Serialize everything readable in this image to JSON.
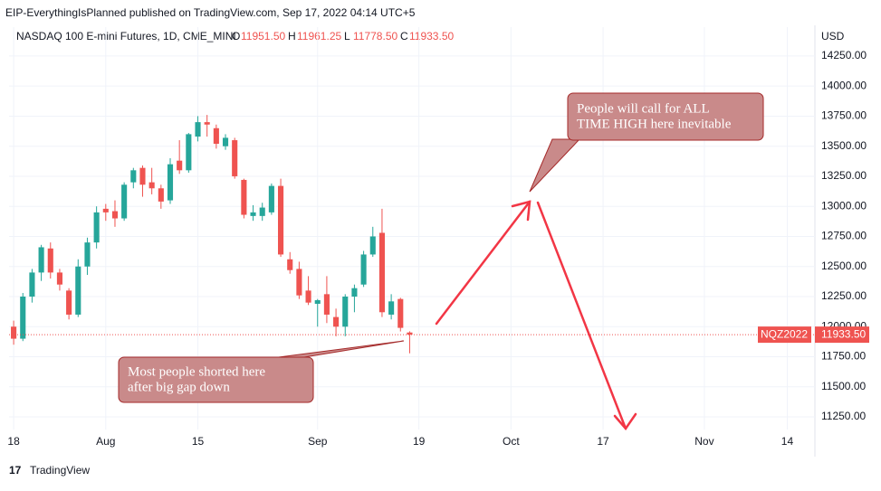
{
  "header": {
    "publisher": "EIP-EverythingIsPlanned published on TradingView.com, Sep 17, 2022 04:14 UTC+5",
    "symbol": "NASDAQ 100 E-mini Futures, 1D, CME_MINI",
    "ohlc": [
      {
        "label": "O",
        "value": "11951.50"
      },
      {
        "label": "H",
        "value": "11961.25"
      },
      {
        "label": "L",
        "value": "11778.50"
      },
      {
        "label": "C",
        "value": "11933.50"
      }
    ]
  },
  "chart_data": {
    "type": "candlestick",
    "currency": "USD",
    "x": [
      0,
      1,
      2,
      3,
      4,
      5,
      6,
      7,
      8,
      9,
      10,
      11,
      12,
      13,
      14,
      15,
      16,
      17,
      18,
      19,
      20,
      21,
      22,
      23,
      24,
      25,
      26,
      27,
      28,
      29,
      30,
      31,
      32,
      33,
      34,
      35,
      36,
      37,
      38,
      39,
      40,
      41,
      42,
      43
    ],
    "open": [
      12000,
      11900,
      12250,
      12450,
      12650,
      12450,
      12300,
      12100,
      12500,
      12700,
      12980,
      12960,
      12900,
      13200,
      13320,
      13200,
      13150,
      13050,
      13380,
      13300,
      13580,
      13700,
      13650,
      13500,
      13550,
      13220,
      12920,
      12920,
      12950,
      13170,
      12560,
      12480,
      12300,
      12190,
      12270,
      12080,
      12000,
      12250,
      12350,
      12600,
      12780,
      12100,
      12230,
      11951.5
    ],
    "high": [
      12050,
      12280,
      12480,
      12680,
      12700,
      12480,
      12320,
      12560,
      12740,
      13000,
      13020,
      13050,
      13200,
      13320,
      13340,
      13320,
      13180,
      13400,
      13550,
      13610,
      13750,
      13760,
      13680,
      13600,
      13570,
      13230,
      13010,
      13030,
      13190,
      13230,
      12620,
      12540,
      12420,
      12230,
      12420,
      12150,
      12270,
      12350,
      12630,
      12830,
      12980,
      12270,
      12240,
      11961.25
    ],
    "low": [
      11850,
      11880,
      12200,
      12380,
      12400,
      12300,
      12060,
      12080,
      12430,
      12650,
      12880,
      12830,
      12880,
      13150,
      13080,
      13100,
      12980,
      13020,
      13270,
      13280,
      13540,
      13580,
      13480,
      13470,
      13230,
      12900,
      12880,
      12880,
      12930,
      12580,
      12440,
      12230,
      12180,
      12000,
      12030,
      11920,
      11920,
      12120,
      12330,
      12580,
      12080,
      12060,
      11960,
      11778.5
    ],
    "close": [
      11900,
      12250,
      12450,
      12660,
      12450,
      12350,
      12100,
      12500,
      12700,
      12950,
      12950,
      12900,
      13180,
      13300,
      13180,
      13150,
      13040,
      13350,
      13300,
      13600,
      13700,
      13680,
      13520,
      13570,
      13250,
      12930,
      12950,
      12990,
      13170,
      12600,
      12470,
      12260,
      12200,
      12220,
      12100,
      12000,
      12250,
      12320,
      12600,
      12750,
      12120,
      12210,
      11990,
      11933.5
    ],
    "up_color": "#26a69a",
    "down_color": "#ef5350",
    "xlim": [
      -0.5,
      87
    ],
    "xticks": [
      {
        "value": 0,
        "label": "18"
      },
      {
        "value": 10,
        "label": "Aug"
      },
      {
        "value": 20,
        "label": "15"
      },
      {
        "value": 33,
        "label": "Sep"
      },
      {
        "value": 44,
        "label": "19"
      },
      {
        "value": 54,
        "label": "Oct"
      },
      {
        "value": 64,
        "label": "17"
      },
      {
        "value": 75,
        "label": "Nov"
      },
      {
        "value": 84,
        "label": "14"
      }
    ],
    "ylim": [
      11145,
      14490
    ],
    "yticks": [
      {
        "value": 11250,
        "label": "11250.00"
      },
      {
        "value": 11500,
        "label": "11500.00"
      },
      {
        "value": 11750,
        "label": "11750.00"
      },
      {
        "value": 12000,
        "label": "12000.00"
      },
      {
        "value": 12250,
        "label": "12250.00"
      },
      {
        "value": 12500,
        "label": "12500.00"
      },
      {
        "value": 12750,
        "label": "12750.00"
      },
      {
        "value": 13000,
        "label": "13000.00"
      },
      {
        "value": 13250,
        "label": "13250.00"
      },
      {
        "value": 13500,
        "label": "13500.00"
      },
      {
        "value": 13750,
        "label": "13750.00"
      },
      {
        "value": 14000,
        "label": "14000.00"
      },
      {
        "value": 14250,
        "label": "14250.00"
      }
    ],
    "grid": true,
    "price_tag": {
      "symbol": "NQZ2022",
      "price": "11933.50"
    },
    "annotations": [
      {
        "lines": [
          "People will call for ALL",
          "TIME HIGH here inevitable"
        ]
      },
      {
        "lines": [
          "Most people shorted here",
          "after big gap down"
        ]
      }
    ]
  },
  "footer": {
    "brand": "TradingView"
  }
}
